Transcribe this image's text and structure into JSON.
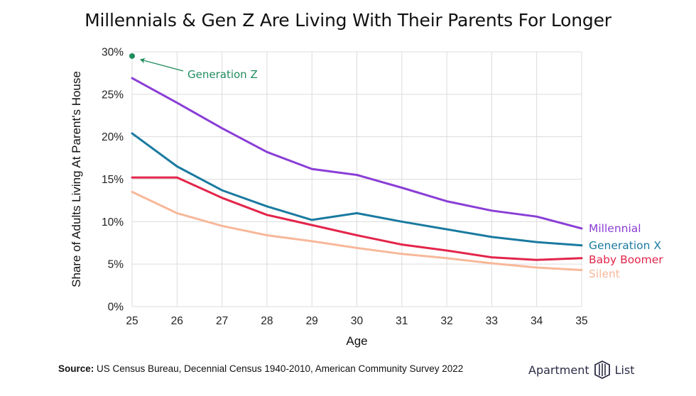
{
  "title": "Millennials & Gen Z Are Living With Their Parents For Longer",
  "footer": {
    "source_label": "Source:",
    "source_text": "US Census Bureau, Decennial Census 1940-2010, American Community Survey 2022"
  },
  "brand": {
    "word1": "Apartment",
    "word2": "List",
    "logo_icon": "apartment-list-logo-icon"
  },
  "chart_data": {
    "type": "line",
    "title": "Millennials & Gen Z Are Living With Their Parents For Longer",
    "xlabel": "Age",
    "ylabel": "Share of Adults Living At Parent's House",
    "x": [
      25,
      26,
      27,
      28,
      29,
      30,
      31,
      32,
      33,
      34,
      35
    ],
    "xlim": [
      25,
      35
    ],
    "ylim": [
      0,
      30
    ],
    "yticks": [
      0,
      5,
      10,
      15,
      20,
      25,
      30
    ],
    "ytick_labels": [
      "0%",
      "5%",
      "10%",
      "15%",
      "20%",
      "25%",
      "30%"
    ],
    "grid": true,
    "legend": "inline labels at right end of lines",
    "series": [
      {
        "name": "Millennial",
        "color": "#8a3ed6",
        "values": [
          26.9,
          24.0,
          21.0,
          18.2,
          16.2,
          15.5,
          14.0,
          12.4,
          11.3,
          10.6,
          9.2
        ]
      },
      {
        "name": "Generation X",
        "color": "#1a7aa0",
        "values": [
          20.4,
          16.5,
          13.7,
          11.8,
          10.2,
          11.0,
          10.0,
          9.1,
          8.2,
          7.6,
          7.2
        ]
      },
      {
        "name": "Baby Boomer",
        "color": "#e3254a",
        "values": [
          15.2,
          15.2,
          12.8,
          10.8,
          9.6,
          8.4,
          7.3,
          6.6,
          5.8,
          5.5,
          5.7
        ]
      },
      {
        "name": "Silent",
        "color": "#f7b89a",
        "values": [
          13.5,
          11.0,
          9.5,
          8.4,
          7.7,
          6.9,
          6.2,
          5.7,
          5.1,
          4.6,
          4.3
        ]
      }
    ],
    "points": [
      {
        "name": "Generation Z",
        "color": "#1f8c5e",
        "x": 25,
        "y": 29.5
      }
    ],
    "annotations": [
      {
        "text": "Generation Z",
        "target": "Generation Z",
        "color": "#1f8c5e"
      }
    ]
  }
}
